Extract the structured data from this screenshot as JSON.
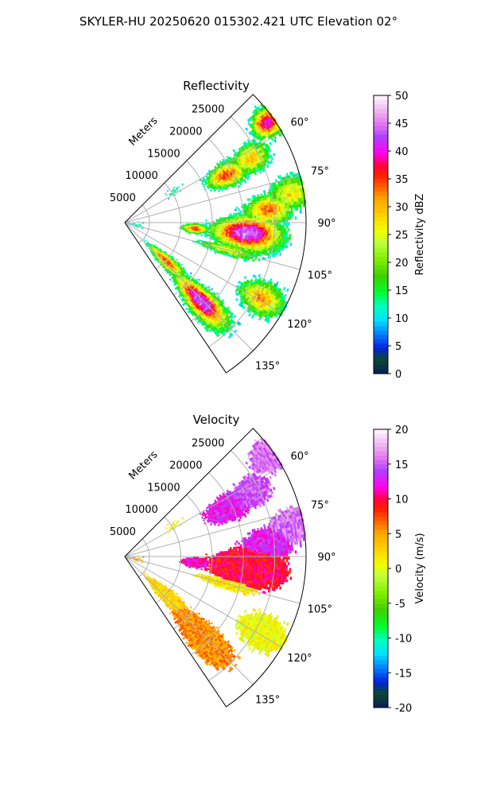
{
  "title": "SKYLER-HU  20250620  015302.421 UTC Elevation 02°",
  "colormap_stops": [
    [
      0,
      "#0a1560"
    ],
    [
      0.06,
      "#0b4a2e"
    ],
    [
      0.1,
      "#0020e0"
    ],
    [
      0.16,
      "#0090ff"
    ],
    [
      0.2,
      "#00e0ff"
    ],
    [
      0.25,
      "#00ffc0"
    ],
    [
      0.3,
      "#00ff30"
    ],
    [
      0.36,
      "#40d000"
    ],
    [
      0.42,
      "#80f000"
    ],
    [
      0.48,
      "#c0ff40"
    ],
    [
      0.52,
      "#f0ff00"
    ],
    [
      0.58,
      "#ffd000"
    ],
    [
      0.64,
      "#ffa000"
    ],
    [
      0.68,
      "#ff6000"
    ],
    [
      0.72,
      "#ff2000"
    ],
    [
      0.76,
      "#ff0040"
    ],
    [
      0.8,
      "#ff00f0"
    ],
    [
      0.86,
      "#b040ff"
    ],
    [
      0.9,
      "#e070f0"
    ],
    [
      0.95,
      "#f0b0f0"
    ],
    [
      1,
      "#fff0ff"
    ]
  ],
  "chart_data": [
    {
      "type": "heatmap",
      "projection": "polar-sector",
      "title": "Reflectivity",
      "radial_label": "Meters",
      "radial_ticks": [
        "5000",
        "10000",
        "15000",
        "20000",
        "25000"
      ],
      "radial_tick_values": [
        5000,
        10000,
        15000,
        20000,
        25000
      ],
      "range_limits_m": [
        1066,
        30000
      ],
      "azimuth_limits_deg": [
        45,
        146
      ],
      "azimuth_ticks": [
        "60°",
        "75°",
        "90°",
        "105°",
        "120°",
        "135°"
      ],
      "azimuth_tick_values": [
        60,
        75,
        90,
        105,
        120,
        135
      ],
      "colorbar": {
        "label": "Reflectivity dBZ",
        "min": 0,
        "max": 50,
        "ticks": [
          "0",
          "5",
          "10",
          "15",
          "20",
          "25",
          "30",
          "35",
          "40",
          "45",
          "50"
        ]
      },
      "field": "dbz",
      "echo_clusters": [
        {
          "az": 95,
          "range_m": 20600,
          "az_sd": 5,
          "range_sd": 3500,
          "dbz": 46,
          "vel": 10
        },
        {
          "az": 85,
          "range_m": 24000,
          "az_sd": 4,
          "range_sd": 2500,
          "dbz": 34,
          "vel": 13
        },
        {
          "az": 55,
          "range_m": 28800,
          "az_sd": 3,
          "range_sd": 1600,
          "dbz": 42,
          "vel": 16
        },
        {
          "az": 65,
          "range_m": 19000,
          "az_sd": 4,
          "range_sd": 2200,
          "dbz": 36,
          "vel": 13
        },
        {
          "az": 63,
          "range_m": 23500,
          "az_sd": 4,
          "range_sd": 2200,
          "dbz": 30,
          "vel": 15
        },
        {
          "az": 80,
          "range_m": 28000,
          "az_sd": 4,
          "range_sd": 2500,
          "dbz": 28,
          "vel": 16
        },
        {
          "az": 95,
          "range_m": 12300,
          "az_sd": 2.5,
          "range_sd": 1300,
          "dbz": 37,
          "vel": 12
        },
        {
          "az": 136,
          "range_m": 18500,
          "az_sd": 4,
          "range_sd": 3500,
          "dbz": 45,
          "vel": 6
        },
        {
          "az": 133,
          "range_m": 10000,
          "az_sd": 4,
          "range_sd": 2500,
          "dbz": 36,
          "vel": 3
        },
        {
          "az": 119,
          "range_m": 26000,
          "az_sd": 4,
          "range_sd": 2500,
          "dbz": 32,
          "vel": 1
        },
        {
          "az": 105,
          "range_m": 18000,
          "az_sd": 2,
          "range_sd": 3500,
          "dbz": 26,
          "vel": 2
        },
        {
          "az": 100,
          "range_m": 3000,
          "az_sd": 15,
          "range_sd": 1200,
          "dbz": 12,
          "vel": 5
        },
        {
          "az": 57,
          "range_m": 10000,
          "az_sd": 4,
          "range_sd": 2000,
          "dbz": 12,
          "vel": 1
        }
      ]
    },
    {
      "type": "heatmap",
      "projection": "polar-sector",
      "title": "Velocity",
      "radial_label": "Meters",
      "radial_ticks": [
        "5000",
        "10000",
        "15000",
        "20000",
        "25000"
      ],
      "radial_tick_values": [
        5000,
        10000,
        15000,
        20000,
        25000
      ],
      "range_limits_m": [
        1066,
        30000
      ],
      "azimuth_limits_deg": [
        45,
        146
      ],
      "azimuth_ticks": [
        "60°",
        "75°",
        "90°",
        "105°",
        "120°",
        "135°"
      ],
      "azimuth_tick_values": [
        60,
        75,
        90,
        105,
        120,
        135
      ],
      "colorbar": {
        "label": "Velocity (m/s)",
        "min": -20,
        "max": 20,
        "ticks": [
          "-20",
          "-15",
          "-10",
          "-5",
          "0",
          "5",
          "10",
          "15",
          "20"
        ]
      },
      "field": "vel"
    }
  ]
}
